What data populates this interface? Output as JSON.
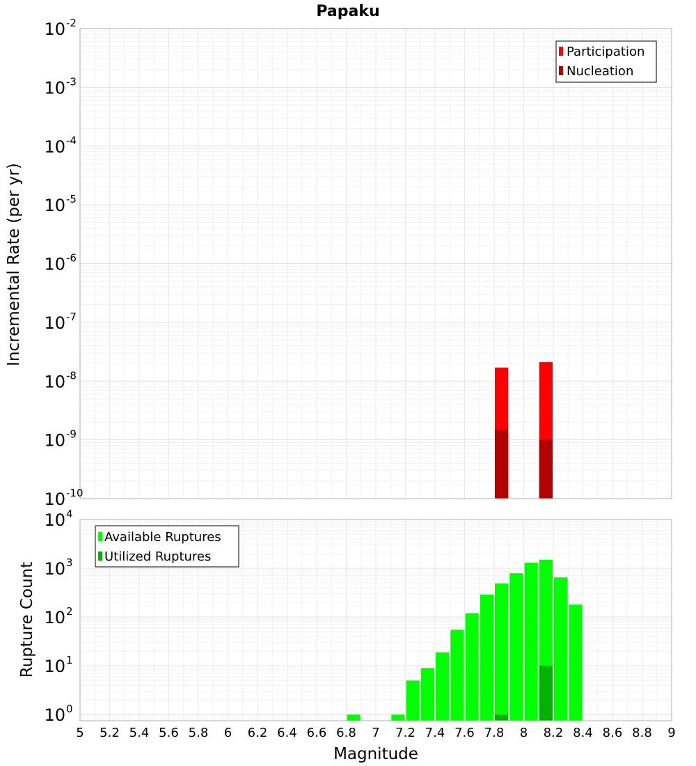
{
  "chart_data": [
    {
      "type": "bar",
      "title": "Papaku",
      "xlabel": "",
      "ylabel": "Incremental Rate (per yr)",
      "xlim": [
        5,
        9
      ],
      "ylim": [
        1e-10,
        0.01
      ],
      "yscale": "log",
      "grid": true,
      "legend_position": "top-right",
      "bin_width": 0.1,
      "y_ticks": [
        {
          "base": "10",
          "exp": "-10"
        },
        {
          "base": "10",
          "exp": "-9"
        },
        {
          "base": "10",
          "exp": "-8"
        },
        {
          "base": "10",
          "exp": "-7"
        },
        {
          "base": "10",
          "exp": "-6"
        },
        {
          "base": "10",
          "exp": "-5"
        },
        {
          "base": "10",
          "exp": "-4"
        },
        {
          "base": "10",
          "exp": "-3"
        },
        {
          "base": "10",
          "exp": "-2"
        }
      ],
      "series": [
        {
          "name": "Participation",
          "color": "#ff0000",
          "x": [
            7.85,
            8.15
          ],
          "values": [
            1.7e-08,
            2.1e-08
          ]
        },
        {
          "name": "Nucleation",
          "color": "#b30000",
          "x": [
            7.85,
            8.15
          ],
          "values": [
            1.5e-09,
            1e-09
          ]
        }
      ]
    },
    {
      "type": "bar",
      "title": "",
      "xlabel": "Magnitude",
      "ylabel": "Rupture Count",
      "xlim": [
        5,
        9
      ],
      "ylim": [
        0.75,
        10000
      ],
      "yscale": "log",
      "grid": true,
      "legend_position": "top-left",
      "bin_width": 0.1,
      "x_ticks": [
        "5",
        "5.2",
        "5.4",
        "5.6",
        "5.8",
        "6",
        "6.2",
        "6.4",
        "6.6",
        "6.8",
        "7",
        "7.2",
        "7.4",
        "7.6",
        "7.8",
        "8",
        "8.2",
        "8.4",
        "8.6",
        "8.8",
        "9"
      ],
      "y_ticks": [
        {
          "base": "10",
          "exp": "0",
          "value": 1
        },
        {
          "base": "10",
          "exp": "1",
          "value": 10
        },
        {
          "base": "10",
          "exp": "2",
          "value": 100
        },
        {
          "base": "10",
          "exp": "3",
          "value": 1000
        },
        {
          "base": "10",
          "exp": "4",
          "value": 10000
        }
      ],
      "series": [
        {
          "name": "Available Ruptures",
          "color": "#00ff00",
          "x": [
            6.85,
            7.15,
            7.25,
            7.35,
            7.45,
            7.55,
            7.65,
            7.75,
            7.85,
            7.95,
            8.05,
            8.15,
            8.25,
            8.35
          ],
          "values": [
            1,
            1,
            5,
            9,
            19,
            55,
            120,
            290,
            490,
            790,
            1300,
            1500,
            650,
            180
          ]
        },
        {
          "name": "Utilized Ruptures",
          "color": "#00b300",
          "x": [
            7.85,
            8.15
          ],
          "values": [
            1,
            10
          ]
        }
      ]
    }
  ]
}
